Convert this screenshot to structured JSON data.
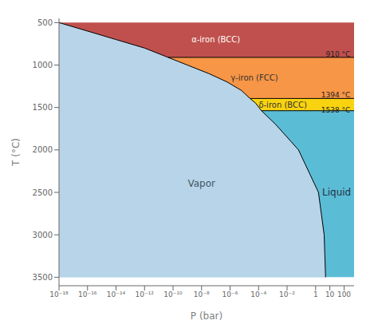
{
  "chart_data": {
    "type": "area",
    "xlabel": "P (bar)",
    "ylabel": "T (°C)",
    "log": "x",
    "grid": false,
    "xlim": [
      1e-18,
      500
    ],
    "ylim": [
      450,
      3600
    ],
    "xticks": [
      {
        "value": 1e-18,
        "label": "10⁻¹⁸"
      },
      {
        "value": 1e-16,
        "label": "10⁻¹⁶"
      },
      {
        "value": 1e-14,
        "label": "10⁻¹⁴"
      },
      {
        "value": 1e-12,
        "label": "10⁻¹²"
      },
      {
        "value": 1e-10,
        "label": "10⁻¹⁰"
      },
      {
        "value": 1e-08,
        "label": "10⁻⁸"
      },
      {
        "value": 1e-06,
        "label": "10⁻⁶"
      },
      {
        "value": 0.0001,
        "label": "10⁻⁴"
      },
      {
        "value": 0.01,
        "label": "10⁻²"
      },
      1,
      10,
      100
    ],
    "yticks": [
      500,
      1000,
      1500,
      2000,
      2500,
      3000,
      3500
    ],
    "series": [
      {
        "type": "area",
        "color": "#c0504d",
        "x": [
          500,
          500
        ],
        "values": [
          500,
          910
        ]
      },
      {
        "type": "area",
        "color": "#f79646",
        "x": [
          500,
          500
        ],
        "values": [
          910,
          1394
        ]
      },
      {
        "type": "area",
        "color": "#f9d30f",
        "x": [
          500,
          500
        ],
        "values": [
          1394,
          1538
        ]
      },
      {
        "type": "area",
        "color": "#5bbcd6",
        "x": [
          500,
          500
        ],
        "values": [
          1538,
          3500
        ]
      },
      {
        "type": "area",
        "color": "#b8d4e8",
        "x": [
          1e-18,
          1e-16,
          1e-14,
          1e-12,
          3.1622777e-11,
          1e-09,
          3.1622777e-08,
          6.3095734e-07,
          6.3095734e-06,
          2.5118864e-05,
          6.3095734e-05,
          0.00015848932,
          0.0015848932,
          0.063095734,
          1.5848932,
          3.9810717,
          5.0118723
        ],
        "values": [
          500,
          600,
          700,
          800,
          900,
          1000,
          1100,
          1200,
          1300,
          1394,
          1450,
          1538,
          1700,
          2000,
          2500,
          3000,
          3500
        ]
      },
      {
        "type": "line",
        "color": "#000000",
        "x": [
          1e-18,
          1e-16,
          1e-14,
          1e-12,
          3.1622777e-11,
          1e-09,
          3.1622777e-08,
          6.3095734e-07,
          6.3095734e-06,
          2.5118864e-05,
          6.3095734e-05,
          0.00015848932,
          0.0015848932,
          0.063095734,
          1.5848932,
          3.9810717,
          5.0118723
        ],
        "values": [
          500,
          600,
          700,
          800,
          900,
          1000,
          1100,
          1200,
          1300,
          1394,
          1450,
          1538,
          1700,
          2000,
          2500,
          3000,
          3500
        ]
      },
      {
        "type": "line",
        "color": "#000000",
        "x": [
          4.4668359e-11,
          500
        ],
        "values": [
          910,
          910
        ]
      },
      {
        "type": "line",
        "color": "#000000",
        "x": [
          2.5118864e-05,
          500
        ],
        "values": [
          1394,
          1394
        ]
      },
      {
        "type": "line",
        "color": "#000000",
        "x": [
          0.00015848932,
          500
        ],
        "values": [
          1538,
          1538
        ]
      }
    ],
    "region_labels": [
      {
        "text": "α-iron (BCC)",
        "x": 1e-07,
        "y": 700,
        "color": "#ffffff"
      },
      {
        "text": "γ-iron (FCC)",
        "x": 5e-05,
        "y": 1150,
        "color": "#333333"
      },
      {
        "text": "δ-iron (BCC)",
        "x": 0.005,
        "y": 1466,
        "color": "#333333"
      },
      {
        "text": "Vapor",
        "x": 1e-08,
        "y": 2400,
        "color": "#445566"
      },
      {
        "text": "Liquid",
        "x": 30,
        "y": 2500,
        "color": "#223344"
      }
    ],
    "annotations": [
      {
        "text": "1538 °C",
        "x": 275,
        "y": 1583,
        "color": "#222222"
      },
      {
        "text": "1394 °C",
        "x": 275,
        "y": 1402,
        "color": "#222222"
      },
      {
        "text": "910 °C",
        "x": 275,
        "y": 918,
        "color": "#222222"
      }
    ]
  }
}
